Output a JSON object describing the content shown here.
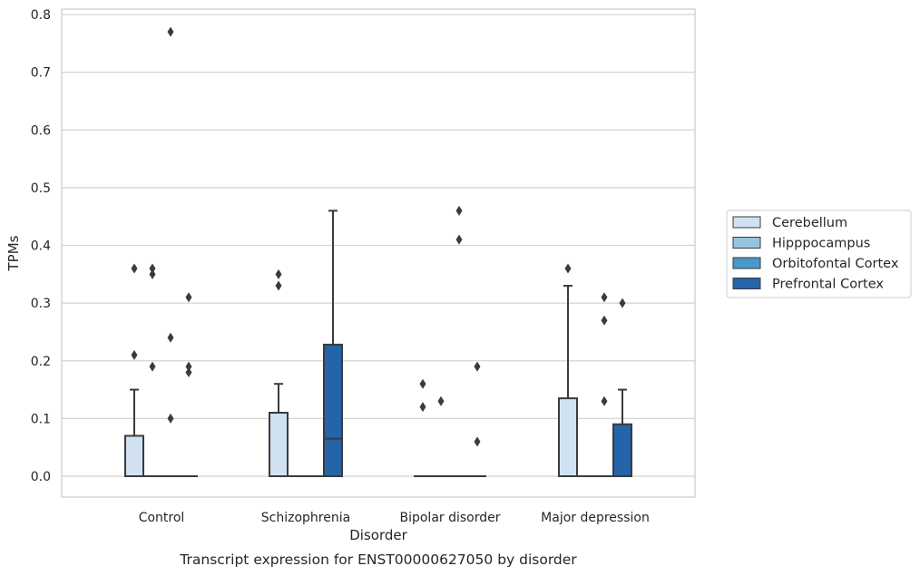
{
  "chart_data": {
    "type": "box",
    "title": "",
    "caption": "Transcript expression for ENST00000627050 by disorder",
    "xlabel": "Disorder",
    "ylabel": "TPMs",
    "ylim": [
      -0.037,
      0.812
    ],
    "yticks": [
      0.0,
      0.1,
      0.2,
      0.3,
      0.4,
      0.5,
      0.6,
      0.7,
      0.8
    ],
    "ytick_labels": [
      "0.0",
      "0.1",
      "0.2",
      "0.3",
      "0.4",
      "0.5",
      "0.6",
      "0.7",
      "0.8"
    ],
    "grid": "horizontal",
    "legend_position": "right",
    "categories": [
      "Control",
      "Schizophrenia",
      "Bipolar disorder",
      "Major depression"
    ],
    "series": [
      {
        "name": "Cerebellum",
        "color": "#d0e1f2",
        "boxes": [
          {
            "q1": 0.0,
            "median": 0.0,
            "q3": 0.07,
            "whislo": 0.0,
            "whishi": 0.15,
            "fliers": [
              0.21,
              0.36
            ]
          },
          {
            "q1": 0.0,
            "median": 0.0,
            "q3": 0.11,
            "whislo": 0.0,
            "whishi": 0.16,
            "fliers": [
              0.33,
              0.35
            ]
          },
          {
            "q1": 0.0,
            "median": 0.0,
            "q3": 0.0,
            "whislo": 0.0,
            "whishi": 0.0,
            "fliers": [
              0.12,
              0.16
            ]
          },
          {
            "q1": 0.0,
            "median": 0.0,
            "q3": 0.135,
            "whislo": 0.0,
            "whishi": 0.33,
            "fliers": [
              0.36
            ]
          }
        ]
      },
      {
        "name": "Hipppocampus",
        "color": "#94c4df",
        "boxes": [
          {
            "q1": 0.0,
            "median": 0.0,
            "q3": 0.0,
            "whislo": 0.0,
            "whishi": 0.0,
            "fliers": [
              0.19,
              0.35,
              0.36
            ]
          },
          {
            "q1": 0.0,
            "median": 0.0,
            "q3": 0.0,
            "whislo": 0.0,
            "whishi": 0.0,
            "fliers": []
          },
          {
            "q1": 0.0,
            "median": 0.0,
            "q3": 0.0,
            "whislo": 0.0,
            "whishi": 0.0,
            "fliers": [
              0.13
            ]
          },
          {
            "q1": 0.0,
            "median": 0.0,
            "q3": 0.0,
            "whislo": 0.0,
            "whishi": 0.0,
            "fliers": []
          }
        ]
      },
      {
        "name": "Orbitofontal Cortex",
        "color": "#4a98c9",
        "boxes": [
          {
            "q1": 0.0,
            "median": 0.0,
            "q3": 0.0,
            "whislo": 0.0,
            "whishi": 0.0,
            "fliers": [
              0.1,
              0.24,
              0.77
            ]
          },
          {
            "q1": 0.0,
            "median": 0.0,
            "q3": 0.0,
            "whislo": 0.0,
            "whishi": 0.0,
            "fliers": []
          },
          {
            "q1": 0.0,
            "median": 0.0,
            "q3": 0.0,
            "whislo": 0.0,
            "whishi": 0.0,
            "fliers": [
              0.41,
              0.46
            ]
          },
          {
            "q1": 0.0,
            "median": 0.0,
            "q3": 0.0,
            "whislo": 0.0,
            "whishi": 0.0,
            "fliers": [
              0.13,
              0.27,
              0.31
            ]
          }
        ]
      },
      {
        "name": "Prefrontal Cortex",
        "color": "#2464a9",
        "boxes": [
          {
            "q1": 0.0,
            "median": 0.0,
            "q3": 0.0,
            "whislo": 0.0,
            "whishi": 0.0,
            "fliers": [
              0.18,
              0.19,
              0.31
            ]
          },
          {
            "q1": 0.0,
            "median": 0.065,
            "q3": 0.228,
            "whislo": 0.0,
            "whishi": 0.46,
            "fliers": []
          },
          {
            "q1": 0.0,
            "median": 0.0,
            "q3": 0.0,
            "whislo": 0.0,
            "whishi": 0.0,
            "fliers": [
              0.06,
              0.19
            ]
          },
          {
            "q1": 0.0,
            "median": 0.0,
            "q3": 0.09,
            "whislo": 0.0,
            "whishi": 0.15,
            "fliers": [
              0.3
            ]
          }
        ]
      }
    ]
  }
}
